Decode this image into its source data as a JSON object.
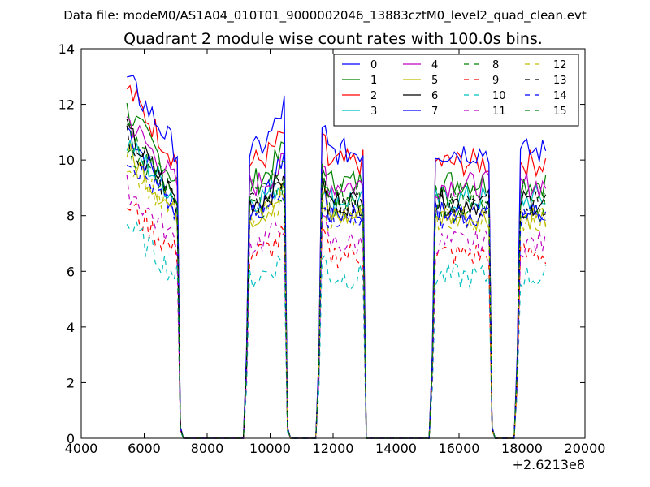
{
  "suptitle": "Data file: modeM0/AS1A04_010T01_9000002046_13883cztM0_level2_quad_clean.evt",
  "chart_data": {
    "type": "line",
    "title": "Quadrant 2 module wise count rates with 100.0s bins.",
    "xlabel": "",
    "ylabel": "",
    "xlim": [
      4000,
      20000
    ],
    "ylim": [
      0,
      14
    ],
    "x_offset_label": "+2.6213e8",
    "xticks": [
      4000,
      6000,
      8000,
      10000,
      12000,
      14000,
      16000,
      18000,
      20000
    ],
    "xtick_labels": [
      "4000",
      "6000",
      "8000",
      "10000",
      "12000",
      "14000",
      "16000",
      "18000",
      "20000"
    ],
    "yticks": [
      0,
      2,
      4,
      6,
      8,
      10,
      12,
      14
    ],
    "ytick_labels": [
      "0",
      "2",
      "4",
      "6",
      "8",
      "10",
      "12",
      "14"
    ],
    "grid": false,
    "legend_position": "top-right",
    "legend_columns": 4,
    "bin_width": 100,
    "segments": [
      {
        "start": 5450,
        "end": 7050
      },
      {
        "start": 9350,
        "end": 10450
      },
      {
        "start": 11650,
        "end": 12950
      },
      {
        "start": 15250,
        "end": 16950
      },
      {
        "start": 17950,
        "end": 18750
      }
    ],
    "zero_segments": [
      {
        "start": 7250,
        "end": 9150
      },
      {
        "start": 10650,
        "end": 11450
      },
      {
        "start": 13050,
        "end": 15050
      },
      {
        "start": 17150,
        "end": 17750
      }
    ],
    "series": [
      {
        "name": "0",
        "color": "#0000ff",
        "dash": "solid",
        "level": 8.1,
        "first": 11.2,
        "peak": 10.4
      },
      {
        "name": "1",
        "color": "#008000",
        "dash": "solid",
        "level": 9.2,
        "first": 11.8,
        "peak": 10.5
      },
      {
        "name": "2",
        "color": "#ff0000",
        "dash": "solid",
        "level": 9.9,
        "first": 12.6,
        "peak": 11.0
      },
      {
        "name": "3",
        "color": "#00bfbf",
        "dash": "solid",
        "level": 8.6,
        "first": 10.6,
        "peak": 9.3
      },
      {
        "name": "4",
        "color": "#bf00bf",
        "dash": "solid",
        "level": 9.1,
        "first": 11.5,
        "peak": 9.9
      },
      {
        "name": "5",
        "color": "#bfbf00",
        "dash": "solid",
        "level": 8.0,
        "first": 10.3,
        "peak": 9.0
      },
      {
        "name": "6",
        "color": "#000000",
        "dash": "solid",
        "level": 8.5,
        "first": 11.0,
        "peak": 9.5
      },
      {
        "name": "7",
        "color": "#0000ff",
        "dash": "solid",
        "level": 10.3,
        "first": 12.9,
        "peak": 12.0
      },
      {
        "name": "8",
        "color": "#008000",
        "dash": "dashed",
        "level": 8.3,
        "first": 10.5,
        "peak": 9.1
      },
      {
        "name": "9",
        "color": "#ff0000",
        "dash": "dashed",
        "level": 6.6,
        "first": 8.4,
        "peak": 7.3
      },
      {
        "name": "10",
        "color": "#00bfbf",
        "dash": "dashed",
        "level": 5.8,
        "first": 7.7,
        "peak": 6.5
      },
      {
        "name": "11",
        "color": "#bf00bf",
        "dash": "dashed",
        "level": 7.0,
        "first": 9.0,
        "peak": 7.8
      },
      {
        "name": "12",
        "color": "#bfbf00",
        "dash": "dashed",
        "level": 7.9,
        "first": 10.0,
        "peak": 8.8
      },
      {
        "name": "13",
        "color": "#000000",
        "dash": "dashed",
        "level": 8.4,
        "first": 10.8,
        "peak": 9.4
      },
      {
        "name": "14",
        "color": "#0000ff",
        "dash": "dashed",
        "level": 8.0,
        "first": 10.2,
        "peak": 8.9
      },
      {
        "name": "15",
        "color": "#008000",
        "dash": "dashed",
        "level": 8.8,
        "first": 11.0,
        "peak": 9.7
      }
    ]
  }
}
